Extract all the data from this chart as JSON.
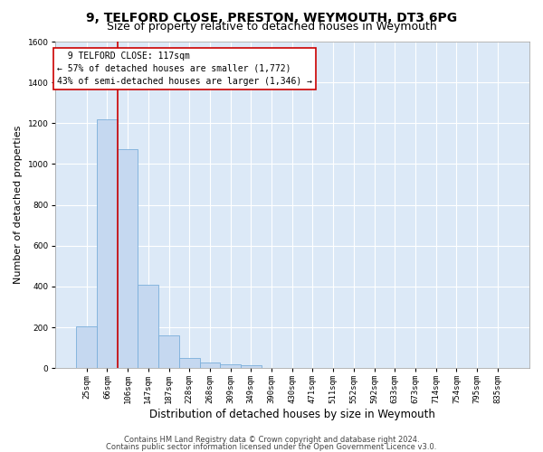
{
  "title1": "9, TELFORD CLOSE, PRESTON, WEYMOUTH, DT3 6PG",
  "title2": "Size of property relative to detached houses in Weymouth",
  "xlabel": "Distribution of detached houses by size in Weymouth",
  "ylabel": "Number of detached properties",
  "footer1": "Contains HM Land Registry data © Crown copyright and database right 2024.",
  "footer2": "Contains public sector information licensed under the Open Government Licence v3.0.",
  "bar_labels": [
    "25sqm",
    "66sqm",
    "106sqm",
    "147sqm",
    "187sqm",
    "228sqm",
    "268sqm",
    "309sqm",
    "349sqm",
    "390sqm",
    "430sqm",
    "471sqm",
    "511sqm",
    "552sqm",
    "592sqm",
    "633sqm",
    "673sqm",
    "714sqm",
    "754sqm",
    "795sqm",
    "835sqm"
  ],
  "bar_values": [
    205,
    1220,
    1075,
    410,
    160,
    48,
    27,
    18,
    15,
    0,
    0,
    0,
    0,
    0,
    0,
    0,
    0,
    0,
    0,
    0,
    0
  ],
  "bar_color": "#c5d8f0",
  "bar_edge_color": "#7aaedb",
  "ylim": [
    0,
    1600
  ],
  "yticks": [
    0,
    200,
    400,
    600,
    800,
    1000,
    1200,
    1400,
    1600
  ],
  "vline_color": "#cc0000",
  "annotation_text": "  9 TELFORD CLOSE: 117sqm  \n← 57% of detached houses are smaller (1,772)\n43% of semi-detached houses are larger (1,346) →",
  "annotation_box_color": "#ffffff",
  "annotation_box_edge": "#cc0000",
  "fig_bg_color": "#ffffff",
  "plot_bg_color": "#dce9f7",
  "grid_color": "#ffffff",
  "title1_fontsize": 10,
  "title2_fontsize": 9,
  "xlabel_fontsize": 8.5,
  "ylabel_fontsize": 8,
  "annotation_fontsize": 7,
  "tick_fontsize": 6.5
}
